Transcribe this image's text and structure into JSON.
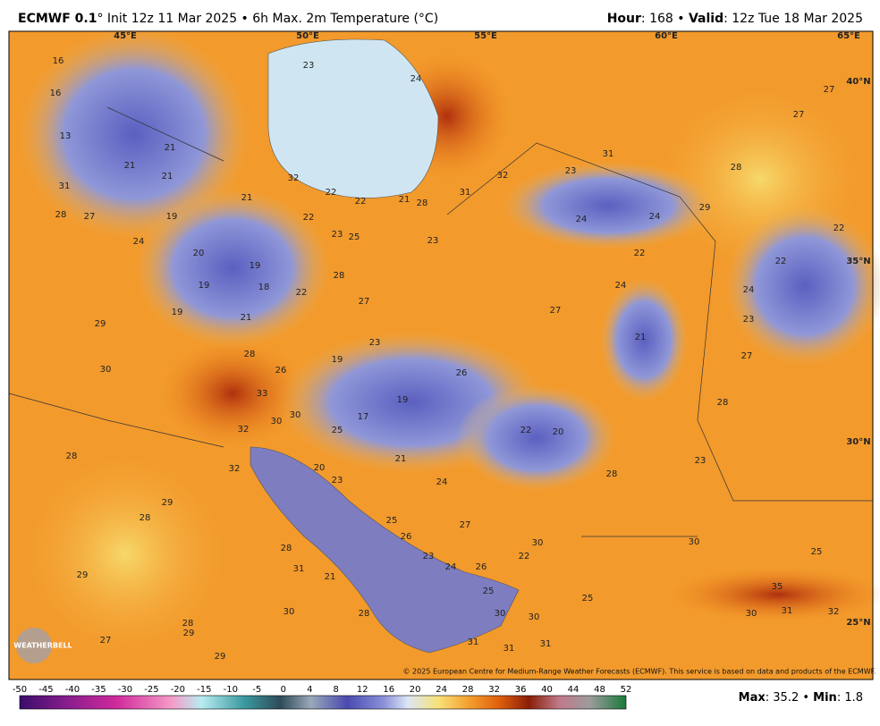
{
  "header": {
    "model": "ECMWF 0.1",
    "subtitle": "° Init 12z 11 Mar 2025 • 6h Max. 2m Temperature (°C)",
    "hour_label": "Hour",
    "hour_text": ": 168 • ",
    "valid_label": "Valid",
    "valid_text": ": 12z Tue 18 Mar 2025"
  },
  "map": {
    "grid_labels": [
      "45°E",
      "50°E",
      "55°E",
      "60°E",
      "65°E",
      "40°N",
      "35°N",
      "30°N",
      "25°N"
    ],
    "labels": [
      16,
      16,
      13,
      21,
      21,
      21,
      31,
      28,
      27,
      24,
      19,
      20,
      19,
      18,
      19,
      22,
      21,
      19,
      21,
      22,
      22,
      22,
      21,
      28,
      23,
      25,
      23,
      32,
      31,
      32,
      31,
      23,
      24,
      24,
      22,
      24,
      27,
      21,
      28,
      27,
      27,
      24,
      23,
      29,
      22,
      22,
      24,
      23,
      27,
      28,
      28,
      27,
      23,
      19,
      26,
      19,
      17,
      25,
      22,
      20,
      28,
      23,
      21,
      24,
      23,
      20,
      28,
      26,
      33,
      30,
      30,
      32,
      32,
      29,
      30,
      28,
      29,
      28,
      29,
      28,
      29,
      27,
      29,
      30,
      31,
      28,
      21,
      28,
      25,
      26,
      27,
      23,
      24,
      26,
      25,
      22,
      30,
      30,
      25,
      25,
      35,
      31,
      30,
      32,
      31,
      31,
      31,
      30,
      30
    ],
    "copyright": "© 2025 European Centre for Medium-Range Weather Forecasts (ECMWF). This service is based on data and products of the ECMWF.",
    "logo": "WEATHERBELL"
  },
  "footer": {
    "colorbar_ticks": [
      -50,
      -45,
      -40,
      -35,
      -30,
      -25,
      -20,
      -15,
      -10,
      -5,
      0,
      4,
      8,
      12,
      16,
      20,
      24,
      28,
      32,
      36,
      40,
      44,
      48,
      52
    ],
    "max_label": "Max",
    "max_text": ": 35.2 • ",
    "min_label": "Min",
    "min_text": ": 1.8"
  }
}
